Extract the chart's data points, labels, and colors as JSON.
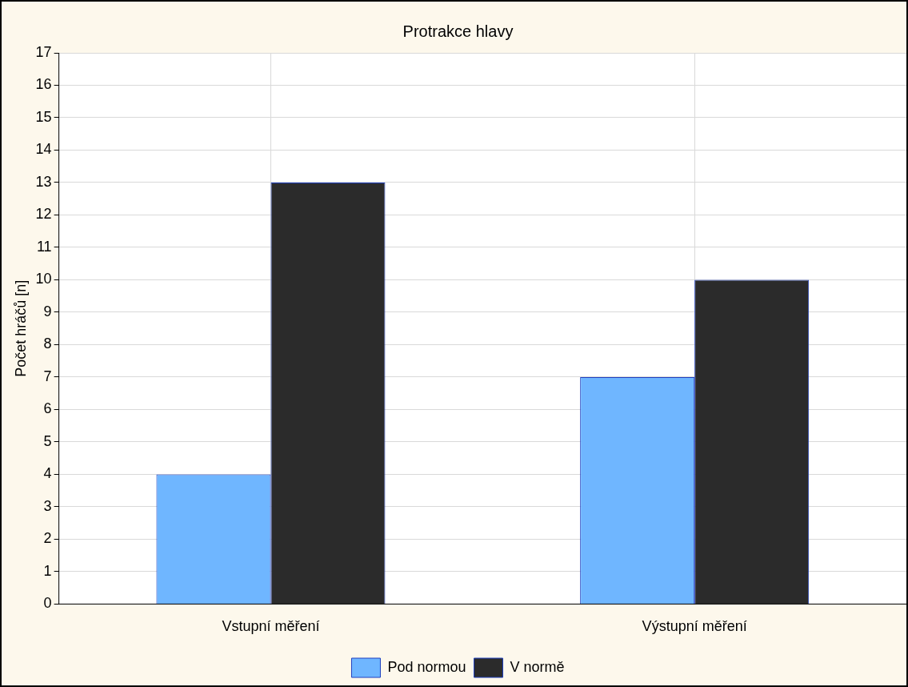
{
  "chart_data": {
    "type": "bar",
    "title": "Protrakce hlavy",
    "ylabel": "Počet hráčů [n]",
    "categories": [
      "Vstupní měření",
      "Výstupní měření"
    ],
    "series": [
      {
        "name": "Pod normou",
        "color": "#6fb6ff",
        "values": [
          4,
          7
        ]
      },
      {
        "name": "V normě",
        "color": "#2b2b2b",
        "values": [
          13,
          10
        ]
      }
    ],
    "ylim": [
      0,
      17
    ],
    "yticks": [
      0,
      1,
      2,
      3,
      4,
      5,
      6,
      7,
      8,
      9,
      10,
      11,
      12,
      13,
      14,
      15,
      16,
      17
    ],
    "grid": true,
    "legend": "bottom"
  }
}
